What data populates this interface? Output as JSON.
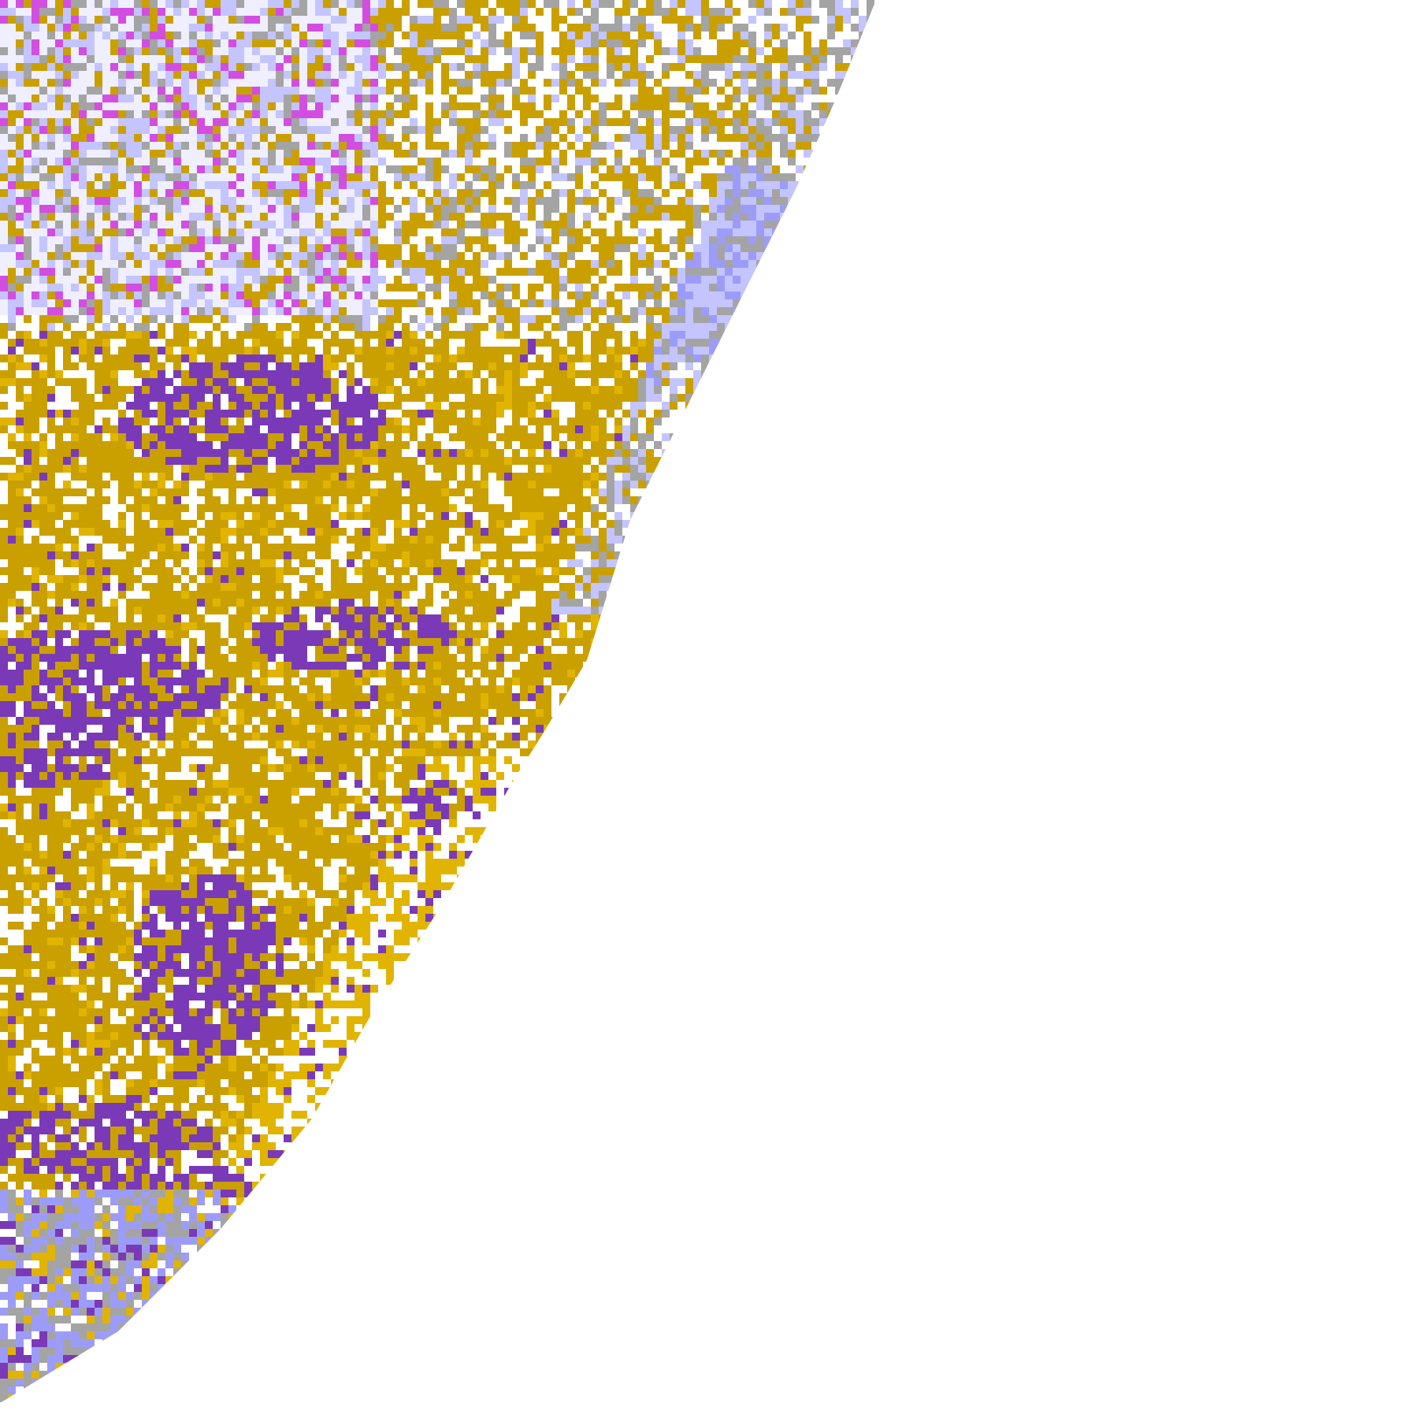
{
  "image": {
    "kind": "satellite cloud-classification disk segment",
    "background_color": "#ffffff",
    "palette": {
      "low_cloud_gold": "#c9a000",
      "low_cloud_gold_light": "#e0b400",
      "mid_cloud_purple": "#7a3ab8",
      "high_cloud_lavender": "#c4c4ff",
      "high_cloud_blue": "#9c9cf8",
      "thick_cloud_pale": "#efefff",
      "convective_magenta": "#d24ee0",
      "edge_gray": "#a4a4a4",
      "clear": "#ffffff"
    }
  }
}
